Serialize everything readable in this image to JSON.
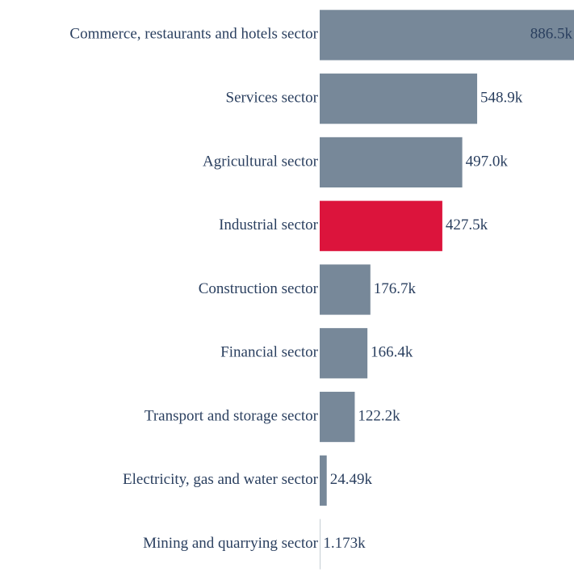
{
  "chart_data": {
    "type": "hbar",
    "categories": [
      "Commerce, restaurants and hotels sector",
      "Services sector",
      "Agricultural sector",
      "Industrial sector",
      "Construction sector",
      "Financial sector",
      "Transport and storage sector",
      "Electricity, gas and water sector",
      "Mining and quarrying sector"
    ],
    "values": [
      886500,
      548900,
      497000,
      427500,
      176700,
      166400,
      122200,
      24490,
      1173
    ],
    "value_labels": [
      "886.5k",
      "548.9k",
      "497.0k",
      "427.5k",
      "176.7k",
      "166.4k",
      "122.2k",
      "24.49k",
      "1.173k"
    ],
    "colors": [
      "#778899",
      "#778899",
      "#778899",
      "#dc143c",
      "#778899",
      "#778899",
      "#778899",
      "#778899",
      "#778899"
    ]
  }
}
